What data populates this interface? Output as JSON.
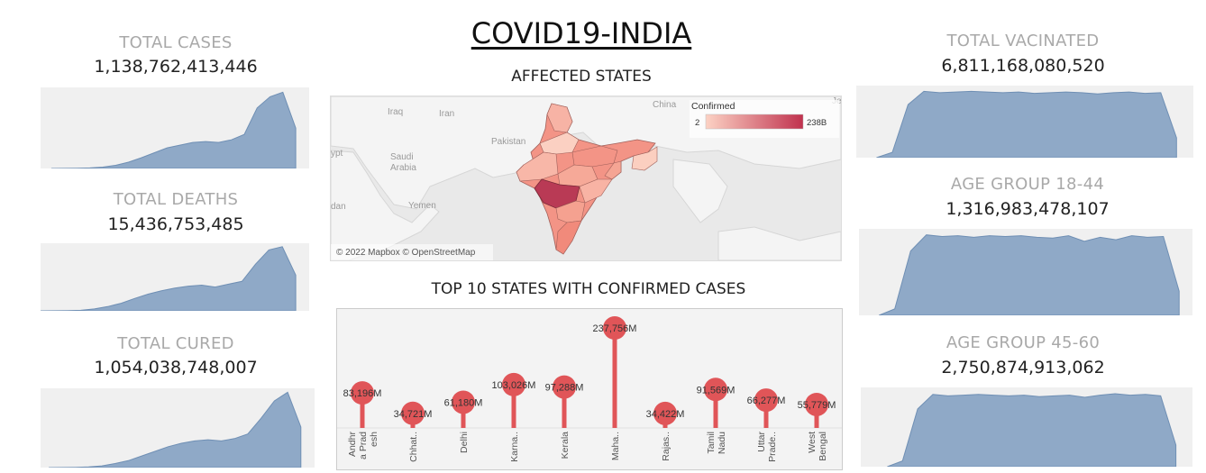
{
  "title": "COVID19-INDIA",
  "colors": {
    "area_fill": "#8fa9c7",
    "area_stroke": "#6f8fb4",
    "spark_bg": "#f0f0f0",
    "lollipop": "#e05558",
    "map_low": "#fcd2c4",
    "map_high": "#c0324e"
  },
  "kpis": {
    "total_cases": {
      "label": "TOTAL CASES",
      "value": "1,138,762,413,446"
    },
    "total_deaths": {
      "label": "TOTAL DEATHS",
      "value": "15,436,753,485"
    },
    "total_cured": {
      "label": "TOTAL CURED",
      "value": "1,054,038,748,007"
    },
    "total_vaccinated": {
      "label": "TOTAL VACINATED",
      "value": "6,811,168,080,520"
    },
    "age_18_44": {
      "label": "AGE GROUP 18-44",
      "value": "1,316,983,478,107"
    },
    "age_45_60": {
      "label": "AGE GROUP 45-60",
      "value": "2,750,874,913,062"
    }
  },
  "map": {
    "title": "AFFECTED STATES",
    "legend_title": "Confirmed",
    "legend_min": "2",
    "legend_max": "238B",
    "attribution": "© 2022 Mapbox © OpenStreetMap",
    "place_labels": [
      "Iraq",
      "Iran",
      "Pakistan",
      "Saudi Arabia",
      "Yemen",
      "China",
      "ypt",
      "dan",
      "Je"
    ]
  },
  "chart_data": [
    {
      "type": "area",
      "name": "total_cases_trend",
      "values": [
        0,
        0.2,
        0.5,
        1.2,
        3,
        7,
        14,
        24,
        35,
        46,
        52,
        58,
        60,
        58,
        64,
        76,
        135,
        160,
        170,
        90
      ]
    },
    {
      "type": "area",
      "name": "total_deaths_trend",
      "values": [
        0,
        0.2,
        0.5,
        1.2,
        4,
        9,
        16,
        26,
        35,
        42,
        48,
        52,
        54,
        50,
        56,
        62,
        98,
        128,
        135,
        75
      ]
    },
    {
      "type": "area",
      "name": "total_cured_trend",
      "values": [
        0,
        0.2,
        0.5,
        1.2,
        3,
        7,
        12,
        20,
        28,
        36,
        42,
        46,
        48,
        46,
        50,
        58,
        85,
        115,
        130,
        70
      ]
    },
    {
      "type": "area",
      "name": "total_vaccinated_trend",
      "values": [
        0,
        8,
        80,
        100,
        98,
        99,
        100,
        99,
        98,
        99,
        97,
        98,
        99,
        98,
        96,
        98,
        99,
        97,
        98,
        30
      ]
    },
    {
      "type": "area",
      "name": "age_18_44_trend",
      "values": [
        0,
        8,
        80,
        100,
        98,
        99,
        97,
        99,
        98,
        99,
        97,
        96,
        99,
        92,
        97,
        94,
        99,
        97,
        98,
        30
      ]
    },
    {
      "type": "area",
      "name": "age_45_60_trend",
      "values": [
        0,
        8,
        80,
        100,
        98,
        99,
        100,
        99,
        98,
        99,
        97,
        98,
        99,
        96,
        99,
        101,
        99,
        100,
        98,
        30
      ]
    },
    {
      "type": "lollipop",
      "name": "top10",
      "title": "TOP  10 STATES WITH CONFIRMED CASES",
      "categories": [
        "Andhr a Prad esh",
        "Chhat..",
        "Delhi",
        "Karna..",
        "Kerala",
        "Maha..",
        "Rajas..",
        "Tamil Nadu",
        "Uttar Prade..",
        "West Bengal"
      ],
      "category_lines": [
        [
          "Andhr",
          "a Prad",
          "esh"
        ],
        [
          "Chhat.."
        ],
        [
          "Delhi"
        ],
        [
          "Karna.."
        ],
        [
          "Kerala"
        ],
        [
          "Maha.."
        ],
        [
          "Rajas.."
        ],
        [
          "Tamil",
          "Nadu"
        ],
        [
          "Uttar",
          "Prade.."
        ],
        [
          "West",
          "Bengal"
        ]
      ],
      "values": [
        83.196,
        34.721,
        61.18,
        103.026,
        97.288,
        237.756,
        34.422,
        91.569,
        66.277,
        55.779
      ],
      "data_labels": [
        "83,196M",
        "34,721M",
        "61,180M",
        "103,026M",
        "97,288M",
        "237,756M",
        "34,422M",
        "91,569M",
        "66,277M",
        "55,779M"
      ],
      "ylim": [
        0,
        240
      ]
    }
  ]
}
